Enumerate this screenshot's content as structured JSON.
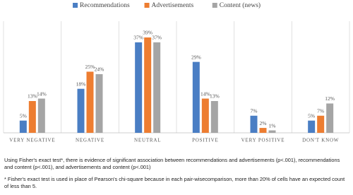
{
  "chart_data": {
    "type": "bar",
    "categories": [
      "VERY NEGATIVE",
      "NEGATIVE",
      "NEUTRAL",
      "POSITIVE",
      "VERY POSITIVE",
      "DON'T KNOW"
    ],
    "series": [
      {
        "name": "Recommendations",
        "color": "#4a7ec4",
        "values": [
          5,
          18,
          37,
          29,
          7,
          5
        ],
        "value_labels": [
          "5%",
          "18%",
          "37%",
          "29%",
          "7%",
          "5%"
        ]
      },
      {
        "name": "Advertisements",
        "color": "#ed7d31",
        "values": [
          13,
          25,
          39,
          14,
          2,
          7
        ],
        "value_labels": [
          "13%",
          "25%",
          "39%",
          "14%",
          "2%",
          "7%"
        ]
      },
      {
        "name": "Content (news)",
        "color": "#a5a5a5",
        "values": [
          14,
          24,
          37,
          13,
          1,
          12
        ],
        "value_labels": [
          "14%",
          "24%",
          "37%",
          "13%",
          "1%",
          "12%"
        ]
      }
    ],
    "legend": "top",
    "notes": [
      "Using Fisher's exact test*, there is evidence of significant association between recommendations and advertisements (p<.001), recommendations and content (p<.001), and advertisements and content (p<.001)",
      "* Fisher's exact test is used in place of Pearson's chi-square because in each pair-wisecomparison, more than 20% of cells have an expected count of less than 5."
    ]
  }
}
